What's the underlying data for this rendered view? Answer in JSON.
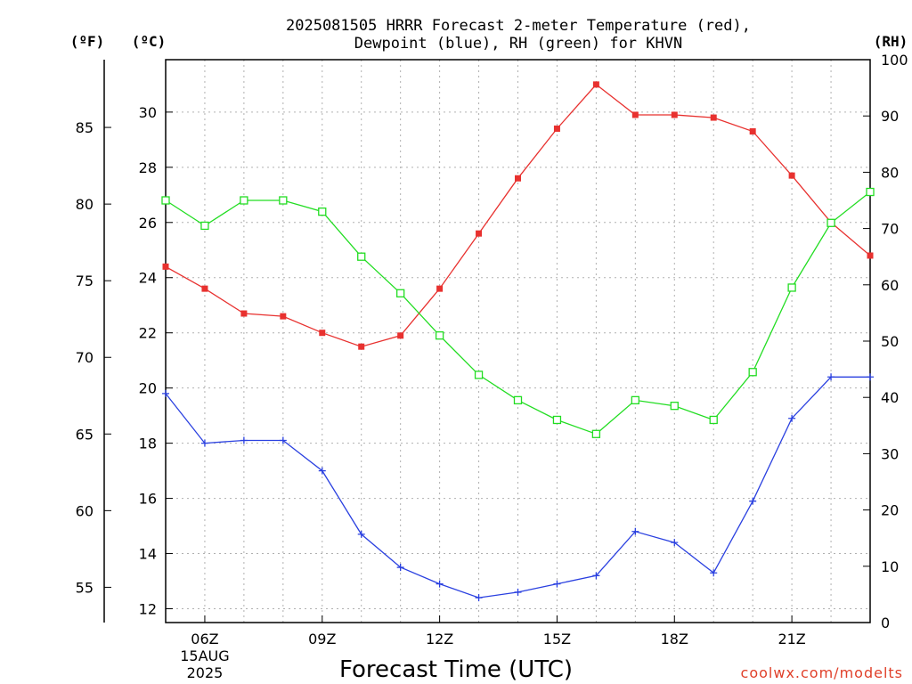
{
  "chart_data": {
    "type": "line",
    "title_line1": "2025081505 HRRR Forecast 2-meter Temperature (red),",
    "title_line2": "Dewpoint (blue), RH (green) for KHVN",
    "units": {
      "fahrenheit": "(ºF)",
      "celsius": "(ºC)",
      "rh": "(RH)"
    },
    "xlabel": "Forecast Time (UTC)",
    "credit": "coolwx.com/modelts",
    "x_hours": [
      5,
      6,
      7,
      8,
      9,
      10,
      11,
      12,
      13,
      14,
      15,
      16,
      17,
      18,
      19,
      20,
      21,
      22,
      23
    ],
    "x_range": [
      5,
      23
    ],
    "x_ticks": [
      {
        "hour": 6,
        "label": "06Z",
        "sub1": "15AUG",
        "sub2": "2025"
      },
      {
        "hour": 9,
        "label": "09Z"
      },
      {
        "hour": 12,
        "label": "12Z"
      },
      {
        "hour": 15,
        "label": "15Z"
      },
      {
        "hour": 18,
        "label": "18Z"
      },
      {
        "hour": 21,
        "label": "21Z"
      }
    ],
    "celsius_range": [
      11.5,
      31.9
    ],
    "celsius_ticks": [
      "12",
      "14",
      "16",
      "18",
      "20",
      "22",
      "24",
      "26",
      "28",
      "30"
    ],
    "fahrenheit_ticks": [
      "55",
      "60",
      "65",
      "70",
      "75",
      "80",
      "85"
    ],
    "rh_range": [
      0,
      100
    ],
    "rh_ticks": [
      "0",
      "10",
      "20",
      "30",
      "40",
      "50",
      "60",
      "70",
      "80",
      "90",
      "100"
    ],
    "series": [
      {
        "key": "temperature",
        "axis": "celsius",
        "color": "#e8312f",
        "marker": "filled-square",
        "values": [
          24.4,
          23.6,
          22.7,
          22.6,
          22.0,
          21.5,
          21.9,
          23.6,
          25.6,
          27.6,
          29.4,
          31.0,
          29.9,
          29.9,
          29.8,
          29.3,
          27.7,
          26.0,
          24.8
        ]
      },
      {
        "key": "dewpoint",
        "axis": "celsius",
        "color": "#2a40e0",
        "marker": "plus",
        "values": [
          19.8,
          18.0,
          18.1,
          18.1,
          17.0,
          14.7,
          13.5,
          12.9,
          12.4,
          12.6,
          12.9,
          13.2,
          14.8,
          14.4,
          13.3,
          15.9,
          18.9,
          20.4,
          20.4
        ]
      },
      {
        "key": "rh",
        "axis": "rh",
        "color": "#22dd22",
        "marker": "open-square",
        "values": [
          75,
          70.5,
          75,
          75,
          73,
          65,
          58.5,
          51,
          44,
          39.5,
          36,
          33.5,
          39.5,
          38.5,
          36,
          44.5,
          59.5,
          71,
          76.5
        ]
      }
    ]
  }
}
